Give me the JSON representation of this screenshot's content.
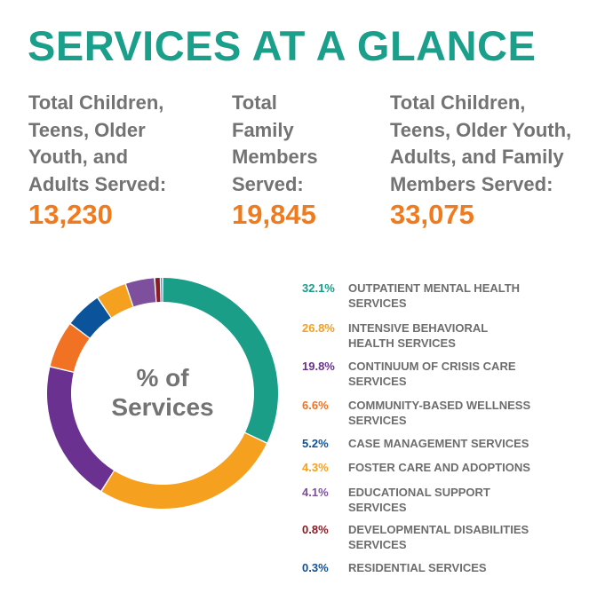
{
  "header": {
    "title": "SERVICES AT A GLANCE"
  },
  "stats": [
    {
      "label": "Total Children,\nTeens, Older\nYouth, and\nAdults Served:",
      "value": "13,230"
    },
    {
      "label": "Total\nFamily\nMembers\nServed:",
      "value": "19,845"
    },
    {
      "label": "Total Children,\nTeens, Older Youth,\nAdults, and Family\nMembers Served:",
      "value": "33,075"
    }
  ],
  "chart_center_label": "% of\nServices",
  "chart_data": {
    "type": "pie",
    "categories": [
      "OUTPATIENT MENTAL HEALTH SERVICES",
      "INTENSIVE BEHAVIORAL HEALTH SERVICES",
      "CONTINUUM OF CRISIS CARE SERVICES",
      "COMMUNITY-BASED WELLNESS SERVICES",
      "CASE MANAGEMENT SERVICES",
      "FOSTER CARE AND ADOPTIONS",
      "EDUCATIONAL SUPPORT SERVICES",
      "DEVELOPMENTAL DISABILITIES SERVICES",
      "RESIDENTIAL SERVICES"
    ],
    "values": [
      32.1,
      26.8,
      19.8,
      6.6,
      5.2,
      4.3,
      4.1,
      0.8,
      0.3
    ],
    "value_labels": [
      "32.1%",
      "26.8%",
      "19.8%",
      "6.6%",
      "5.2%",
      "4.3%",
      "4.1%",
      "0.8%",
      "0.3%"
    ],
    "colors": [
      "#1a9e88",
      "#f6a01f",
      "#6a3191",
      "#f07222",
      "#0b539b",
      "#f6a01f",
      "#7d4f9c",
      "#8b1b24",
      "#0b539b"
    ],
    "legend_lines": [
      [
        "OUTPATIENT MENTAL HEALTH",
        "SERVICES"
      ],
      [
        "INTENSIVE BEHAVIORAL",
        "HEALTH SERVICES"
      ],
      [
        "CONTINUUM OF CRISIS CARE",
        "SERVICES"
      ],
      [
        "COMMUNITY-BASED WELLNESS",
        "SERVICES"
      ],
      [
        "CASE MANAGEMENT SERVICES"
      ],
      [
        "FOSTER CARE AND ADOPTIONS"
      ],
      [
        "EDUCATIONAL SUPPORT",
        "SERVICES"
      ],
      [
        "DEVELOPMENTAL DISABILITIES",
        "SERVICES"
      ],
      [
        "RESIDENTIAL SERVICES"
      ]
    ],
    "donut": true,
    "start": "top, clockwise",
    "legend_position": "right"
  }
}
